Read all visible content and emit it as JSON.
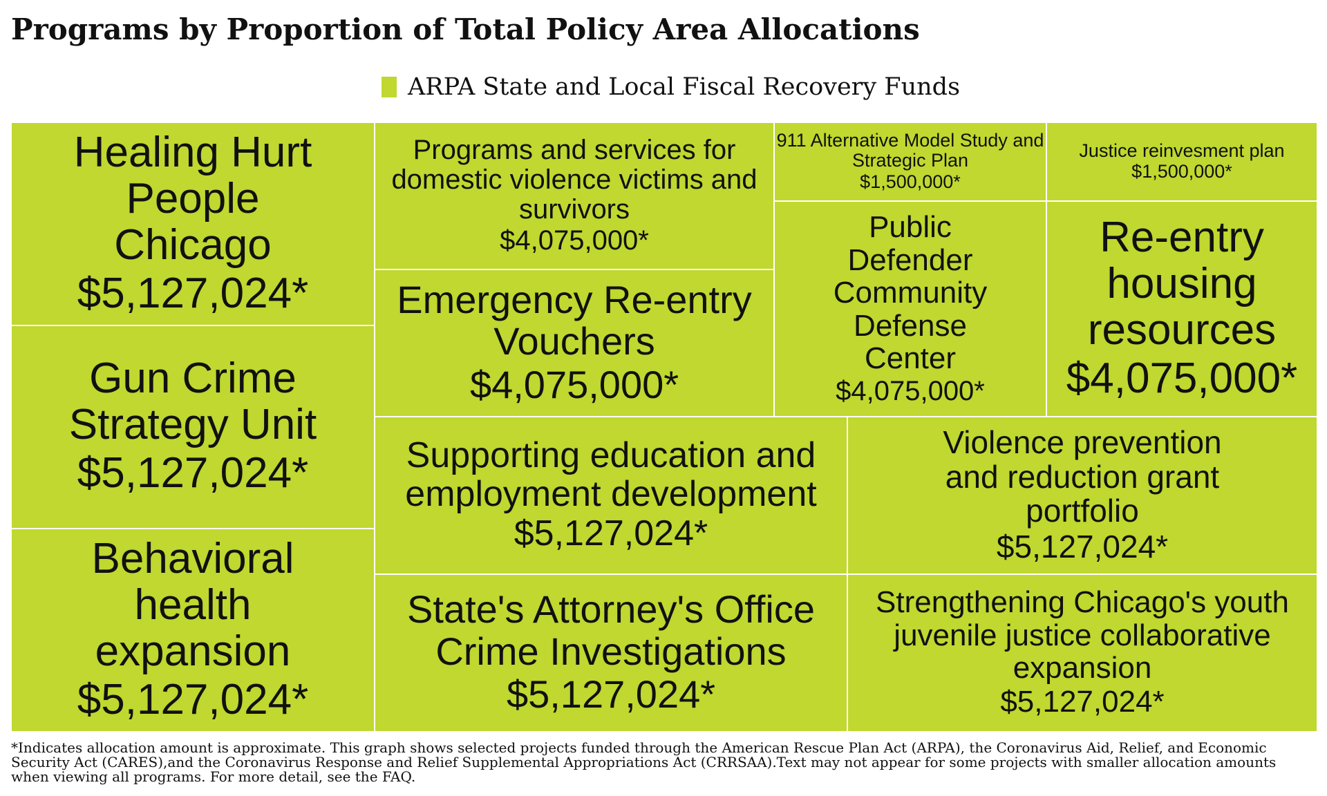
{
  "title": "Programs by Proportion of Total Policy Area Allocations",
  "legend": {
    "label": "ARPA State and Local Fiscal Recovery Funds",
    "color": "#c0d82f"
  },
  "footnote": "*Indicates allocation amount is approximate. This graph shows selected projects funded through the American Rescue Plan Act (ARPA), the Coronavirus Aid, Relief, and Economic Security Act (CARES),and the Coronavirus Response and Relief Supplemental Appropriations Act (CRRSAA).Text may not appear for some projects with smaller allocation amounts when viewing all programs. For more detail, see the FAQ.",
  "chart_data": {
    "type": "treemap",
    "title": "Programs by Proportion of Total Policy Area Allocations",
    "series": [
      {
        "name": "ARPA State and Local Fiscal Recovery Funds",
        "color": "#c0d82f",
        "items": [
          {
            "name": "Healing Hurt People Chicago",
            "value": 5127024,
            "label": "$5,127,024*"
          },
          {
            "name": "Gun Crime Strategy Unit",
            "value": 5127024,
            "label": "$5,127,024*"
          },
          {
            "name": "Behavioral health expansion",
            "value": 5127024,
            "label": "$5,127,024*"
          },
          {
            "name": "Programs and services for domestic violence victims and survivors",
            "value": 4075000,
            "label": "$4,075,000*"
          },
          {
            "name": "Emergency Re-entry Vouchers",
            "value": 4075000,
            "label": "$4,075,000*"
          },
          {
            "name": "911 Alternative Model Study and Strategic Plan",
            "value": 1500000,
            "label": "$1,500,000*"
          },
          {
            "name": "Justice reinvesment plan",
            "value": 1500000,
            "label": "$1,500,000*"
          },
          {
            "name": "Public Defender Community Defense Center",
            "value": 4075000,
            "label": "$4,075,000*"
          },
          {
            "name": "Re-entry housing resources",
            "value": 4075000,
            "label": "$4,075,000*"
          },
          {
            "name": "Supporting education and employment development",
            "value": 5127024,
            "label": "$5,127,024*"
          },
          {
            "name": "Violence prevention and reduction grant portfolio",
            "value": 5127024,
            "label": "$5,127,024*"
          },
          {
            "name": "State's Attorney's Office Crime Investigations",
            "value": 5127024,
            "label": "$5,127,024*"
          },
          {
            "name": "Strengthening Chicago's youth juvenile justice collaborative expansion",
            "value": 5127024,
            "label": "$5,127,024*"
          }
        ]
      }
    ]
  }
}
